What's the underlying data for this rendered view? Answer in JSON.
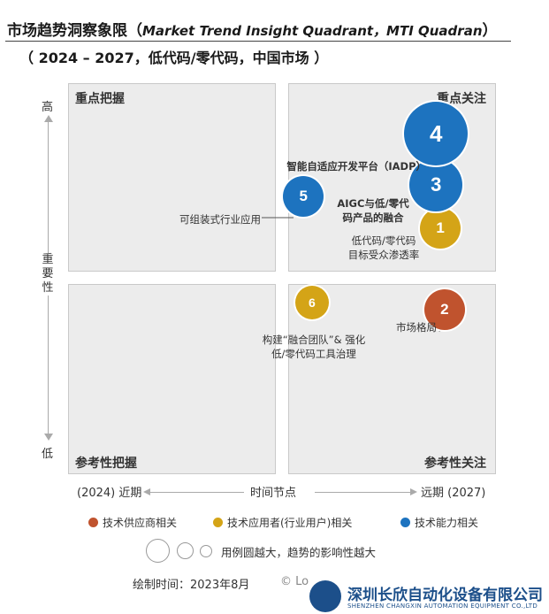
{
  "header": {
    "title_cn": "市场趋势洞察象限（",
    "title_en": "Market Trend Insight Quadrant，MTI Quadran",
    "title_close": "）",
    "subtitle": "（ 2024 – 2027，低代码/零代码，中国市场 ）"
  },
  "chart_data": {
    "type": "scatter",
    "subtype": "bubble-quadrant",
    "title": "市场趋势洞察象限（Market Trend Insight Quadrant，MTI Quadran）",
    "subtitle": "（ 2024 – 2027，低代码/零代码，中国市场 ）",
    "quadrants": {
      "top_left": "重点把握",
      "top_right": "重点关注",
      "bottom_left": "参考性把握",
      "bottom_right": "参考性关注"
    },
    "y_axis": {
      "label": "重要性",
      "high": "高",
      "low": "低"
    },
    "x_axis": {
      "left": "(2024) 近期",
      "center": "时间节点",
      "right": "远期 (2027)"
    },
    "points": [
      {
        "id": "1",
        "label": "低代码/零代码\n目标受众渗透率",
        "category": "tech_user",
        "time": 0.87,
        "importance": 0.63,
        "size": 1
      },
      {
        "id": "2",
        "label": "市场格局",
        "category": "supplier",
        "time": 0.88,
        "importance": 0.42,
        "size": 1
      },
      {
        "id": "3",
        "label": "AIGC与低/零代\n码产品的融合",
        "category": "capability",
        "time": 0.86,
        "importance": 0.74,
        "size": 2
      },
      {
        "id": "4",
        "label": "智能自适应开发平台（IADP）",
        "category": "capability",
        "time": 0.86,
        "importance": 0.87,
        "size": 3
      },
      {
        "id": "5",
        "label": "可组装式行业应用",
        "category": "capability",
        "time": 0.55,
        "importance": 0.71,
        "size": 1
      },
      {
        "id": "6",
        "label": "构建“融合团队”& 强化\n低/零代码工具治理",
        "category": "tech_user",
        "time": 0.57,
        "importance": 0.44,
        "size": 0
      }
    ],
    "legend": [
      {
        "key": "supplier",
        "label": "技术供应商相关",
        "color": "#c0532e"
      },
      {
        "key": "tech_user",
        "label": "技术应用者(行业用户)相关",
        "color": "#d4a417"
      },
      {
        "key": "capability",
        "label": "技术能力相关",
        "color": "#1d73bf"
      }
    ],
    "size_note": "用例圆越大，趋势的影响性越大"
  },
  "footer": {
    "date_text": "绘制时间：2023年8月",
    "copyright": "© Lo",
    "watermark_cn": "深圳长欣自动化设备有限公司",
    "watermark_en": "SHENZHEN CHANGXIN AUTOMATION EQUIPMENT CO.,LTD"
  }
}
